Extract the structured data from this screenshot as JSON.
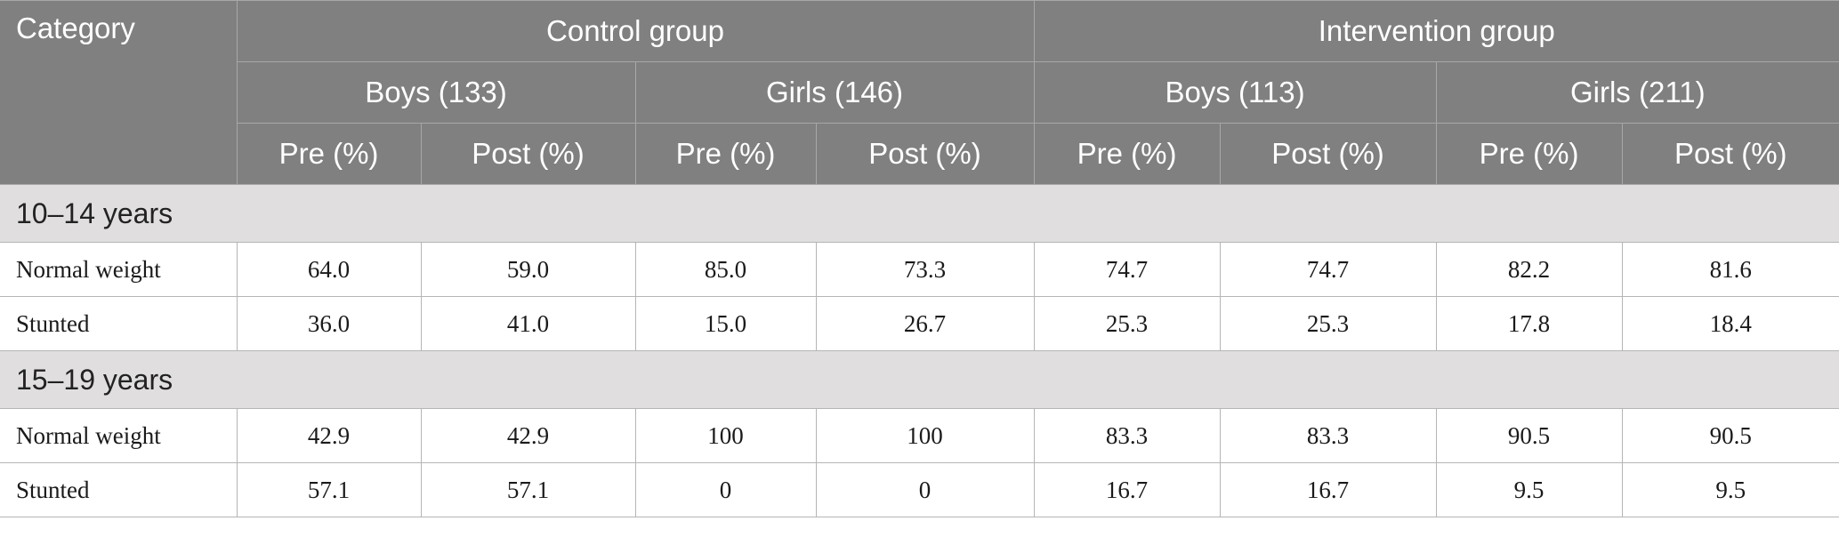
{
  "table": {
    "category_label": "Category",
    "groups": [
      "Control group",
      "Intervention group"
    ],
    "subgroups": [
      "Boys (133)",
      "Girls (146)",
      "Boys (113)",
      "Girls (211)"
    ],
    "measures": [
      "Pre (%)",
      "Post (%)",
      "Pre (%)",
      "Post (%)",
      "Pre (%)",
      "Post (%)",
      "Pre (%)",
      "Post (%)"
    ],
    "sections": [
      {
        "label": "10–14 years",
        "rows": [
          {
            "label": "Normal weight",
            "values": [
              "64.0",
              "59.0",
              "85.0",
              "73.3",
              "74.7",
              "74.7",
              "82.2",
              "81.6"
            ]
          },
          {
            "label": "Stunted",
            "values": [
              "36.0",
              "41.0",
              "15.0",
              "26.7",
              "25.3",
              "25.3",
              "17.8",
              "18.4"
            ]
          }
        ]
      },
      {
        "label": "15–19 years",
        "rows": [
          {
            "label": "Normal weight",
            "values": [
              "42.9",
              "42.9",
              "100",
              "100",
              "83.3",
              "83.3",
              "90.5",
              "90.5"
            ]
          },
          {
            "label": "Stunted",
            "values": [
              "57.1",
              "57.1",
              "0",
              "0",
              "16.7",
              "16.7",
              "9.5",
              "9.5"
            ]
          }
        ]
      }
    ]
  }
}
